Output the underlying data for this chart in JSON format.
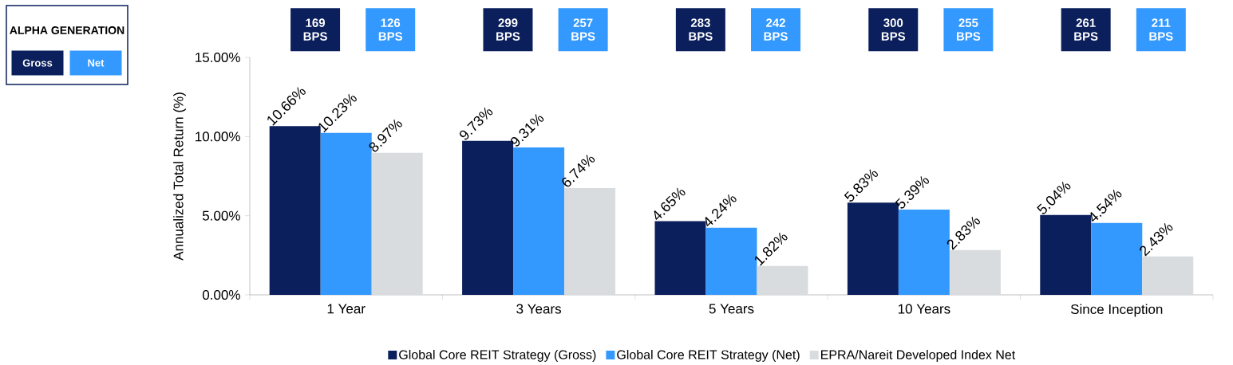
{
  "chart_data": {
    "type": "bar",
    "ylabel": "Annualized Total Return (%)",
    "categories": [
      "1 Year",
      "3 Years",
      "5 Years",
      "10 Years",
      "Since Inception"
    ],
    "series": [
      {
        "name": "Global Core REIT Strategy (Gross)",
        "color": "#0b1f5c",
        "values": [
          10.66,
          9.73,
          4.65,
          5.83,
          5.04
        ],
        "value_labels": [
          "10.66%",
          "9.73%",
          "4.65%",
          "5.83%",
          "5.04%"
        ]
      },
      {
        "name": "Global Core REIT Strategy (Net)",
        "color": "#3399ff",
        "values": [
          10.23,
          9.31,
          4.24,
          5.39,
          4.54
        ],
        "value_labels": [
          "10.23%",
          "9.31%",
          "4.24%",
          "5.39%",
          "4.54%"
        ]
      },
      {
        "name": "EPRA/Nareit Developed Index Net",
        "color": "#d9dcdf",
        "values": [
          8.97,
          6.74,
          1.82,
          2.83,
          2.43
        ],
        "value_labels": [
          "8.97%",
          "6.74%",
          "1.82%",
          "2.83%",
          "2.43%"
        ]
      }
    ],
    "ylim": [
      0,
      15
    ],
    "yticks": [
      {
        "value": 0,
        "label": "0.00%"
      },
      {
        "value": 5,
        "label": "5.00%"
      },
      {
        "value": 10,
        "label": "10.00%"
      },
      {
        "value": 15,
        "label": "15.00%"
      }
    ],
    "legend": "bottom",
    "annotations": [
      "ALPHA GENERATION",
      "Gross",
      "Net",
      "169 BPS",
      "126 BPS",
      "299 BPS",
      "257 BPS",
      "283 BPS",
      "242 BPS",
      "300 BPS",
      "255 BPS",
      "261 BPS",
      "211 BPS"
    ]
  }
}
